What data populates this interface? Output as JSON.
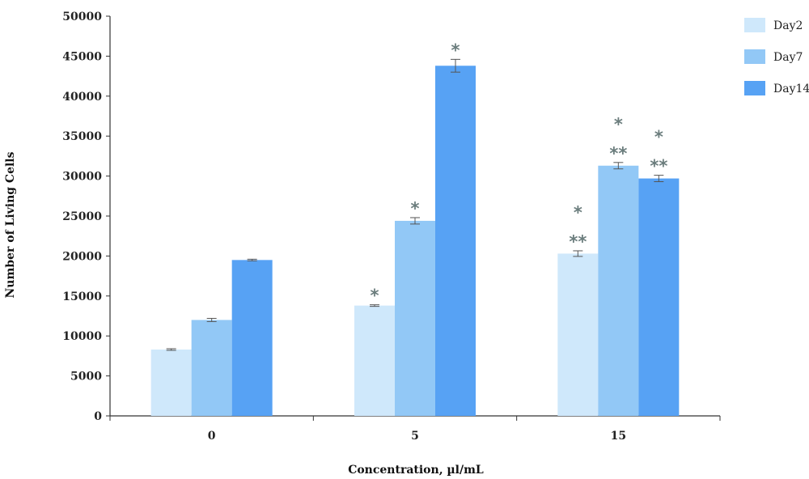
{
  "chart_data": {
    "type": "bar",
    "xlabel": "Concentration, µl/mL",
    "ylabel": "Number of Living Cells",
    "ylim": [
      0,
      50000
    ],
    "yticks": [
      0,
      5000,
      10000,
      15000,
      20000,
      25000,
      30000,
      35000,
      40000,
      45000,
      50000
    ],
    "categories": [
      "0",
      "5",
      "15"
    ],
    "legend_position": "top-right",
    "grid": false,
    "series": [
      {
        "name": "Day2",
        "color": "#cfe8fb",
        "values": [
          8300,
          13800,
          20300
        ],
        "errors": [
          100,
          100,
          350
        ],
        "annotations": [
          [],
          [
            "*"
          ],
          [
            "*",
            "**"
          ]
        ]
      },
      {
        "name": "Day7",
        "color": "#92c8f6",
        "values": [
          12000,
          24400,
          31300
        ],
        "errors": [
          200,
          400,
          400
        ],
        "annotations": [
          [],
          [
            "*"
          ],
          [
            "*",
            "**"
          ]
        ]
      },
      {
        "name": "Day14",
        "color": "#57a2f4",
        "values": [
          19500,
          43800,
          29700
        ],
        "errors": [
          100,
          800,
          400
        ],
        "annotations": [
          [],
          [
            "*"
          ],
          [
            "*",
            "**"
          ]
        ]
      }
    ]
  }
}
